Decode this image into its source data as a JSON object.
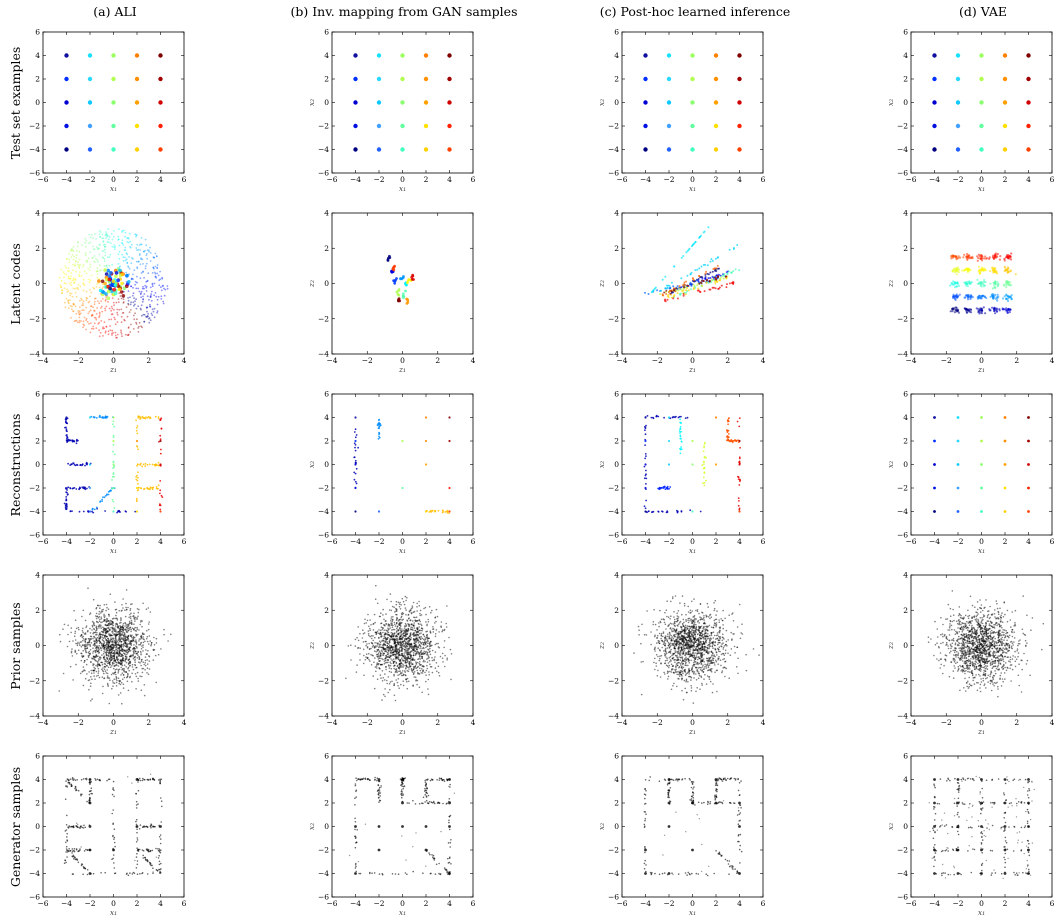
{
  "figure": {
    "column_titles": [
      "(a) ALI",
      "(b) Inv. mapping from GAN samples",
      "(c) Post-hoc learned inference",
      "(d) VAE"
    ],
    "row_titles": [
      "Test set examples",
      "Latent codes",
      "Reconstructions",
      "Prior samples",
      "Generator samples"
    ]
  },
  "chart_data": {
    "type": "scatter",
    "grid": false,
    "legend": "none",
    "x_space": {
      "xlabel": "x₁",
      "ylabel": "x₂",
      "xlim": [
        -6,
        6
      ],
      "ylim": [
        -6,
        6
      ],
      "ticks": [
        "−6",
        "−4",
        "−2",
        "0",
        "2",
        "4",
        "6"
      ],
      "tick_values": [
        -6,
        -4,
        -2,
        0,
        2,
        4,
        6
      ]
    },
    "z_space": {
      "xlabel": "z₁",
      "ylabel": "z₂",
      "xlim": [
        -4,
        4
      ],
      "ylim": [
        -4,
        4
      ],
      "ticks": [
        "−4",
        "−2",
        "0",
        "2",
        "4"
      ],
      "tick_values": [
        -4,
        -2,
        0,
        2,
        4
      ]
    },
    "test_set": {
      "description_grid_x": [
        -4,
        -2,
        0,
        2,
        4
      ],
      "description_grid_y": [
        -4,
        -2,
        0,
        2,
        4
      ],
      "colors_by_column": [
        "#00008f",
        "#1e6cff",
        "#30ffd0",
        "#ffd000",
        "#b30000"
      ],
      "colors_by_row_top_to_bottom": [
        [
          "#1010a0",
          "#18e0ff",
          "#9cff60",
          "#ff8000",
          "#800000"
        ],
        [
          "#0030ff",
          "#28d8ff",
          "#b0ff50",
          "#ff9000",
          "#a00000"
        ],
        [
          "#0000d0",
          "#10c8ff",
          "#8cff70",
          "#ffa000",
          "#d00000"
        ],
        [
          "#0010e0",
          "#40a0ff",
          "#60ffa0",
          "#ffe000",
          "#ff2000"
        ],
        [
          "#000080",
          "#2060ff",
          "#40ffc0",
          "#ffd000",
          "#ff4000"
        ]
      ]
    },
    "vae_latent_grid": {
      "x": [
        -1.5,
        -0.75,
        0,
        0.75,
        1.5
      ],
      "y": [
        -1.5,
        -0.75,
        0,
        0.75,
        1.5
      ]
    },
    "prior": {
      "distribution": "standard normal",
      "mean": [
        0,
        0
      ],
      "std": 1
    }
  }
}
